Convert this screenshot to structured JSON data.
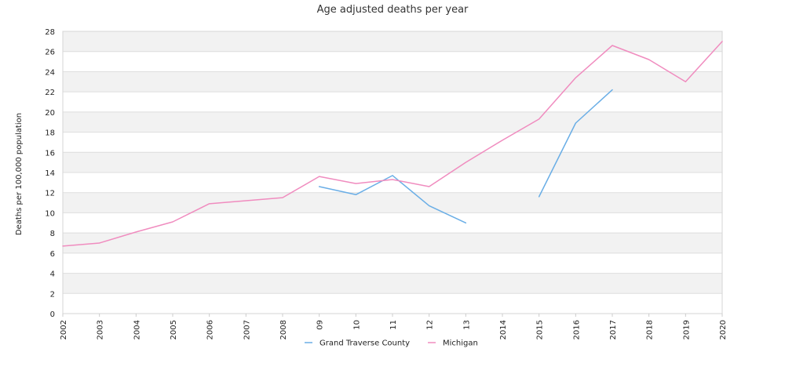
{
  "chart_data": {
    "type": "line",
    "title": "Age adjusted deaths per year",
    "xlabel": "",
    "ylabel": "Deaths per 100,000 population",
    "ylim": [
      0,
      28
    ],
    "y_ticks": [
      0,
      2,
      4,
      6,
      8,
      10,
      12,
      14,
      16,
      18,
      20,
      22,
      24,
      26,
      28
    ],
    "categories": [
      "2002",
      "2003",
      "2004",
      "2005",
      "2006",
      "2007",
      "2008",
      "09",
      "10",
      "11",
      "12",
      "13",
      "2014",
      "2015",
      "2016",
      "2017",
      "2018",
      "2019",
      "2020"
    ],
    "grid": "horizontal alternating bands",
    "legend_position": "bottom",
    "series": [
      {
        "name": "Grand Traverse County",
        "color": "#6aaee6",
        "values": [
          null,
          null,
          null,
          null,
          null,
          null,
          null,
          12.6,
          11.8,
          13.7,
          10.7,
          9.0,
          null,
          11.6,
          18.9,
          22.2,
          null,
          null,
          null
        ]
      },
      {
        "name": "Michigan",
        "color": "#f08cbf",
        "values": [
          6.7,
          7.0,
          8.1,
          9.1,
          10.9,
          11.2,
          11.5,
          13.6,
          12.9,
          13.3,
          12.6,
          15.0,
          17.2,
          19.3,
          23.4,
          26.6,
          25.2,
          23.0,
          27.0
        ]
      }
    ]
  }
}
